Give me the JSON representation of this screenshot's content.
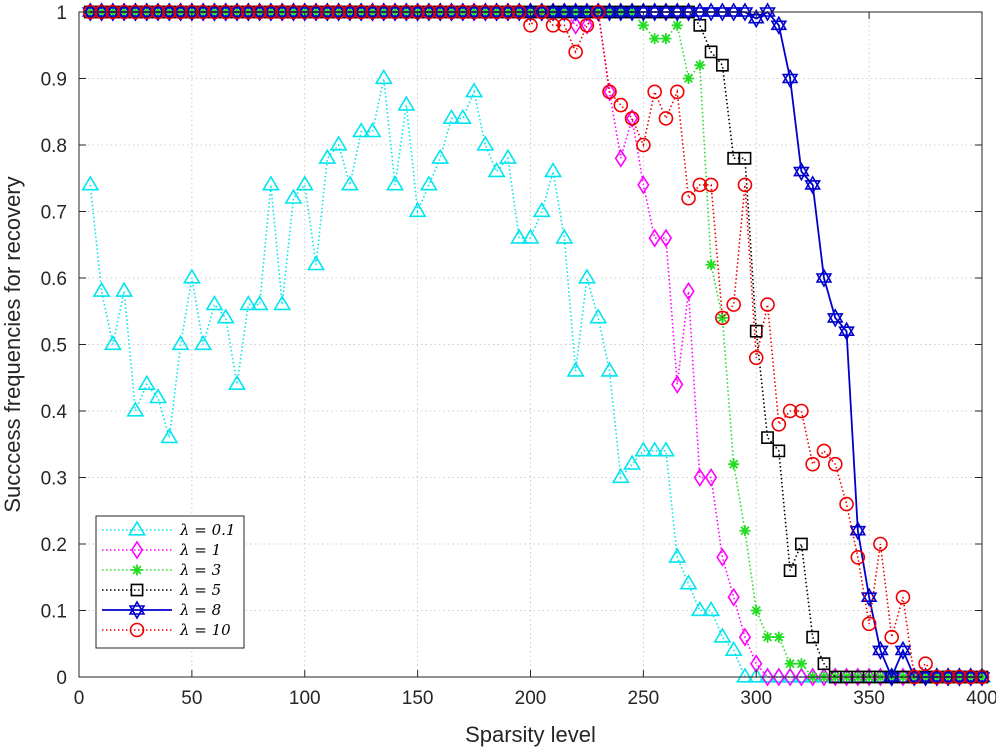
{
  "chart_data": {
    "type": "line",
    "xlabel": "Sparsity  level",
    "ylabel": "Succcess  frequencies  for  recovery",
    "xlim": [
      0,
      400
    ],
    "ylim": [
      0,
      1
    ],
    "xticks": [
      0,
      50,
      100,
      150,
      200,
      250,
      300,
      350,
      400
    ],
    "yticks": [
      0,
      0.1,
      0.2,
      0.3,
      0.4,
      0.5,
      0.6,
      0.7,
      0.8,
      0.9,
      1
    ],
    "grid": true,
    "legend_position": "bottom-left",
    "x": [
      5,
      10,
      15,
      20,
      25,
      30,
      35,
      40,
      45,
      50,
      55,
      60,
      65,
      70,
      75,
      80,
      85,
      90,
      95,
      100,
      105,
      110,
      115,
      120,
      125,
      130,
      135,
      140,
      145,
      150,
      155,
      160,
      165,
      170,
      175,
      180,
      185,
      190,
      195,
      200,
      205,
      210,
      215,
      220,
      225,
      230,
      235,
      240,
      245,
      250,
      255,
      260,
      265,
      270,
      275,
      280,
      285,
      290,
      295,
      300,
      305,
      310,
      315,
      320,
      325,
      330,
      335,
      340,
      345,
      350,
      355,
      360,
      365,
      370,
      375,
      380,
      385,
      390,
      395,
      400
    ],
    "series": [
      {
        "name": "λ = 0.1",
        "color": "#00e5ee",
        "marker": "triangle",
        "line": "dotted",
        "values": [
          0.74,
          0.58,
          0.5,
          0.58,
          0.4,
          0.44,
          0.42,
          0.36,
          0.5,
          0.6,
          0.5,
          0.56,
          0.54,
          0.44,
          0.56,
          0.56,
          0.74,
          0.56,
          0.72,
          0.74,
          0.62,
          0.78,
          0.8,
          0.74,
          0.82,
          0.82,
          0.9,
          0.74,
          0.86,
          0.7,
          0.74,
          0.78,
          0.84,
          0.84,
          0.88,
          0.8,
          0.76,
          0.78,
          0.66,
          0.66,
          0.7,
          0.76,
          0.66,
          0.46,
          0.6,
          0.54,
          0.46,
          0.3,
          0.32,
          0.34,
          0.34,
          0.34,
          0.18,
          0.14,
          0.1,
          0.1,
          0.06,
          0.04,
          0.0,
          0.0,
          0.0,
          0.0,
          0.0,
          0.0,
          0.0,
          0.0,
          0.0,
          0.0,
          0.0,
          0.0,
          0.0,
          0.0,
          0.0,
          0.0,
          0.0,
          0.0,
          0.0,
          0.0,
          0.0,
          0.0
        ]
      },
      {
        "name": "λ = 1",
        "color": "#ff00ff",
        "marker": "diamond",
        "line": "dotted",
        "values": [
          1,
          1,
          1,
          1,
          1,
          1,
          1,
          1,
          1,
          1,
          1,
          1,
          1,
          1,
          1,
          1,
          1,
          1,
          1,
          1,
          1,
          1,
          1,
          1,
          1,
          1,
          1,
          1,
          1,
          1,
          1,
          1,
          1,
          1,
          1,
          1,
          1,
          1,
          1,
          1,
          1,
          1,
          1,
          0.98,
          0.98,
          1,
          0.88,
          0.78,
          0.84,
          0.74,
          0.66,
          0.66,
          0.44,
          0.58,
          0.3,
          0.3,
          0.18,
          0.12,
          0.06,
          0.02,
          0.0,
          0.0,
          0.0,
          0.0,
          0.0,
          0.0,
          0.0,
          0.0,
          0.0,
          0.0,
          0.0,
          0.0,
          0.0,
          0.0,
          0.0,
          0.0,
          0.0,
          0.0,
          0.0,
          0.0
        ]
      },
      {
        "name": "λ = 3",
        "color": "#22dd22",
        "marker": "star",
        "line": "dotted",
        "values": [
          1,
          1,
          1,
          1,
          1,
          1,
          1,
          1,
          1,
          1,
          1,
          1,
          1,
          1,
          1,
          1,
          1,
          1,
          1,
          1,
          1,
          1,
          1,
          1,
          1,
          1,
          1,
          1,
          1,
          1,
          1,
          1,
          1,
          1,
          1,
          1,
          1,
          1,
          1,
          1,
          1,
          1,
          1,
          1,
          1,
          1,
          1,
          1,
          1,
          0.98,
          0.96,
          0.96,
          0.98,
          0.9,
          0.92,
          0.62,
          0.54,
          0.32,
          0.22,
          0.1,
          0.06,
          0.06,
          0.02,
          0.02,
          0.0,
          0.0,
          0.0,
          0.0,
          0.0,
          0.0,
          0.0,
          0.0,
          0.0,
          0.0,
          0.0,
          0.0,
          0.0,
          0.0,
          0.0,
          0.0
        ]
      },
      {
        "name": "λ = 5",
        "color": "#000000",
        "marker": "square",
        "line": "dotted",
        "values": [
          1,
          1,
          1,
          1,
          1,
          1,
          1,
          1,
          1,
          1,
          1,
          1,
          1,
          1,
          1,
          1,
          1,
          1,
          1,
          1,
          1,
          1,
          1,
          1,
          1,
          1,
          1,
          1,
          1,
          1,
          1,
          1,
          1,
          1,
          1,
          1,
          1,
          1,
          1,
          1,
          1,
          1,
          1,
          1,
          1,
          1,
          1,
          1,
          1,
          1,
          1,
          1,
          1,
          1,
          0.98,
          0.94,
          0.92,
          0.78,
          0.78,
          0.52,
          0.36,
          0.34,
          0.16,
          0.2,
          0.06,
          0.02,
          0.0,
          0.0,
          0.0,
          0.0,
          0.0,
          0.0,
          0.0,
          0.0,
          0.0,
          0.0,
          0.0,
          0.0,
          0.0,
          0.0
        ]
      },
      {
        "name": "λ = 8",
        "color": "#0000cc",
        "marker": "hexagram",
        "line": "solid",
        "values": [
          1,
          1,
          1,
          1,
          1,
          1,
          1,
          1,
          1,
          1,
          1,
          1,
          1,
          1,
          1,
          1,
          1,
          1,
          1,
          1,
          1,
          1,
          1,
          1,
          1,
          1,
          1,
          1,
          1,
          1,
          1,
          1,
          1,
          1,
          1,
          1,
          1,
          1,
          1,
          1,
          1,
          1,
          1,
          1,
          1,
          1,
          1,
          1,
          1,
          1,
          1,
          1,
          1,
          1,
          1,
          1,
          1,
          1,
          1,
          0.99,
          1,
          0.98,
          0.9,
          0.76,
          0.74,
          0.6,
          0.54,
          0.52,
          0.22,
          0.12,
          0.04,
          0.0,
          0.04,
          0.0,
          0.0,
          0.0,
          0.0,
          0.0,
          0.0,
          0.0
        ]
      },
      {
        "name": "λ = 10",
        "color": "#ee0000",
        "marker": "circle",
        "line": "dotted",
        "values": [
          1,
          1,
          1,
          1,
          1,
          1,
          1,
          1,
          1,
          1,
          1,
          1,
          1,
          1,
          1,
          1,
          1,
          1,
          1,
          1,
          1,
          1,
          1,
          1,
          1,
          1,
          1,
          1,
          1,
          1,
          1,
          1,
          1,
          1,
          1,
          1,
          1,
          1,
          1,
          0.98,
          1,
          0.98,
          0.98,
          0.94,
          0.98,
          1,
          0.88,
          0.86,
          0.84,
          0.8,
          0.88,
          0.84,
          0.88,
          0.72,
          0.74,
          0.74,
          0.54,
          0.56,
          0.74,
          0.48,
          0.56,
          0.38,
          0.4,
          0.4,
          0.32,
          0.34,
          0.32,
          0.26,
          0.18,
          0.08,
          0.2,
          0.06,
          0.12,
          0.0,
          0.02,
          0.0,
          0.0,
          0.0,
          0.0,
          0.0
        ]
      }
    ]
  }
}
